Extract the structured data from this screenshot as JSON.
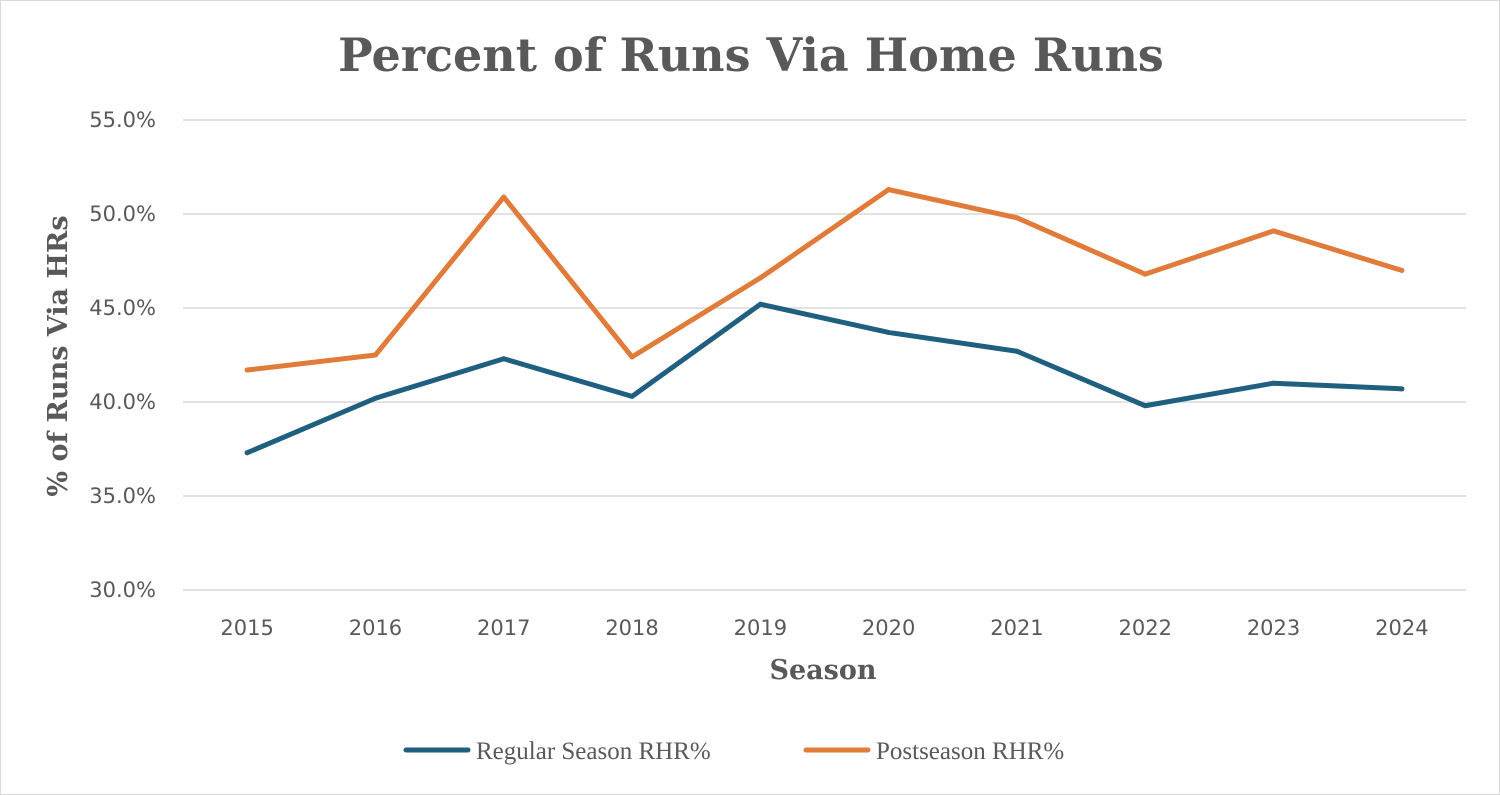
{
  "chart_data": {
    "type": "line",
    "title": "Percent of Runs Via Home Runs",
    "xlabel": "Season",
    "ylabel": "% of Runs Via HRs",
    "categories": [
      "2015",
      "2016",
      "2017",
      "2018",
      "2019",
      "2020",
      "2021",
      "2022",
      "2023",
      "2024"
    ],
    "ylim": [
      30,
      55
    ],
    "yticks": [
      30,
      35,
      40,
      45,
      50,
      55
    ],
    "ytick_labels": [
      "30.0%",
      "35.0%",
      "40.0%",
      "45.0%",
      "50.0%",
      "55.0%"
    ],
    "grid": true,
    "legend_position": "bottom",
    "series": [
      {
        "name": "Regular Season RHR%",
        "color": "#1F5F7F",
        "values": [
          37.3,
          40.2,
          42.3,
          40.3,
          45.2,
          43.7,
          42.7,
          39.8,
          41.0,
          40.7
        ]
      },
      {
        "name": "Postseason RHR%",
        "color": "#E07B39",
        "values": [
          41.7,
          42.5,
          50.9,
          42.4,
          46.6,
          51.3,
          49.8,
          46.8,
          49.1,
          47.0
        ]
      }
    ]
  }
}
